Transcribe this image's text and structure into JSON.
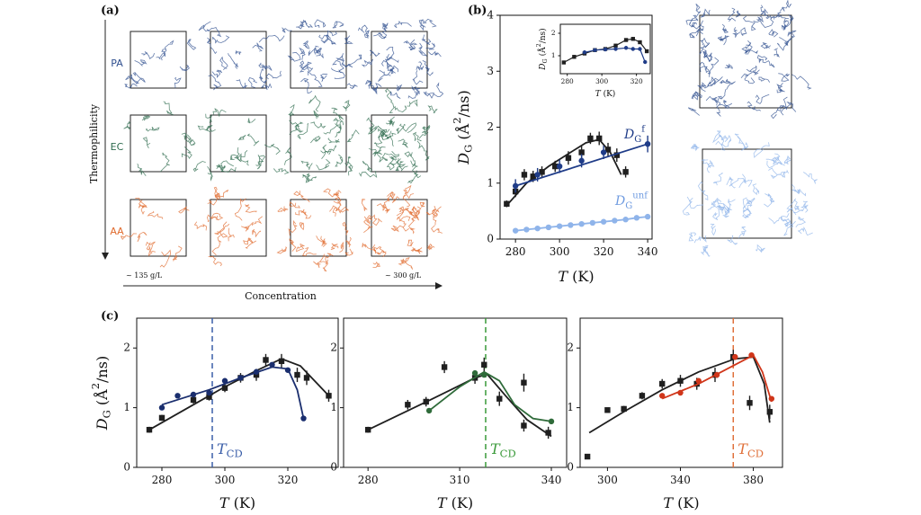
{
  "panel_labels": [
    "(a)",
    "(b)",
    "(c)"
  ],
  "panel_a": {
    "rows": [
      {
        "label": "PA",
        "color": "#2f4f8f"
      },
      {
        "label": "EC",
        "color": "#2e6b4e"
      },
      {
        "label": "AA",
        "color": "#e06a2c"
      }
    ],
    "y_axis_label": "Thermophilicity",
    "x_axis_label": "Concentration",
    "x_start_label": "~ 135 g/L",
    "x_end_label": "~ 300 g/L"
  },
  "chart_data": [
    {
      "type": "scatter",
      "x_label": [
        {
          "text": "T",
          "italic": true
        },
        {
          "text": " (K)"
        }
      ],
      "y_label": [
        {
          "text": "D",
          "italic": true
        },
        {
          "text": "G",
          "sub": true
        },
        {
          "text": " (Å"
        },
        {
          "text": "2",
          "sup": true
        },
        {
          "text": "/ns)"
        }
      ],
      "xlim": [
        273,
        342
      ],
      "ylim": [
        0,
        4
      ],
      "xticks": [
        280,
        300,
        320,
        340
      ],
      "yticks": [
        0,
        1,
        2,
        3,
        4
      ],
      "series": [
        {
          "color": "#1f1f1f",
          "marker": "square",
          "line": false,
          "x": [
            276,
            280,
            284,
            288,
            292,
            298,
            304,
            310,
            314,
            318,
            322,
            326,
            330
          ],
          "values": [
            0.63,
            0.85,
            1.15,
            1.12,
            1.2,
            1.3,
            1.45,
            1.55,
            1.8,
            1.8,
            1.6,
            1.5,
            1.2
          ],
          "errors": [
            0.06,
            0.1,
            0.1,
            0.1,
            0.1,
            0.1,
            0.12,
            0.12,
            0.1,
            0.12,
            0.12,
            0.12,
            0.1
          ]
        },
        {
          "color": "#1f1f1f",
          "marker": "none",
          "line": true,
          "x": [
            276,
            285,
            295,
            305,
            312,
            318,
            323,
            328
          ],
          "values": [
            0.6,
            1.0,
            1.3,
            1.55,
            1.72,
            1.78,
            1.55,
            1.15
          ]
        },
        {
          "color": "#1f3c88",
          "marker": "circle",
          "line": false,
          "x": [
            280,
            290,
            300,
            310,
            320,
            340
          ],
          "values": [
            0.95,
            1.15,
            1.3,
            1.4,
            1.55,
            1.7
          ],
          "errors": [
            0.12,
            0.12,
            0.12,
            0.12,
            0.12,
            0.15
          ]
        },
        {
          "color": "#1f3c88",
          "marker": "none",
          "line": true,
          "x": [
            280,
            340
          ],
          "values": [
            0.95,
            1.7
          ]
        },
        {
          "color": "#8fb4ea",
          "marker": "circle",
          "line": true,
          "x": [
            280,
            285,
            290,
            295,
            300,
            305,
            310,
            315,
            320,
            325,
            330,
            335,
            340
          ],
          "values": [
            0.15,
            0.17,
            0.19,
            0.21,
            0.23,
            0.25,
            0.27,
            0.29,
            0.31,
            0.33,
            0.35,
            0.38,
            0.4
          ]
        }
      ],
      "annotations": [
        {
          "parts": [
            {
              "text": "D",
              "italic": true
            },
            {
              "text": "G",
              "sub": true
            },
            {
              "text": "f",
              "sup": true
            }
          ],
          "color": "#1f3c88"
        },
        {
          "parts": [
            {
              "text": "D",
              "italic": true
            },
            {
              "text": "G",
              "sub": true
            },
            {
              "text": "unf",
              "sup": true
            }
          ],
          "color": "#6f9be0"
        }
      ]
    },
    {
      "type": "scatter",
      "x_label": [
        {
          "text": "T",
          "italic": true
        },
        {
          "text": " (K)"
        }
      ],
      "y_label": [
        {
          "text": "D",
          "italic": true
        },
        {
          "text": "G",
          "sub": true
        },
        {
          "text": " (Å"
        },
        {
          "text": "2",
          "sup": true
        },
        {
          "text": "/ns)"
        }
      ],
      "xlim": [
        276,
        328
      ],
      "ylim": [
        0.2,
        2.4
      ],
      "xticks": [
        280,
        300,
        320
      ],
      "yticks": [
        1,
        2
      ],
      "series": [
        {
          "color": "#1f1f1f",
          "marker": "square",
          "line": true,
          "x": [
            278,
            284,
            290,
            296,
            302,
            308,
            314,
            318,
            322,
            326
          ],
          "values": [
            0.7,
            0.95,
            1.1,
            1.25,
            1.3,
            1.45,
            1.7,
            1.75,
            1.6,
            1.2
          ]
        },
        {
          "color": "#1f3c88",
          "marker": "circle",
          "line": true,
          "x": [
            290,
            296,
            302,
            308,
            314,
            318,
            322,
            325
          ],
          "values": [
            1.15,
            1.25,
            1.28,
            1.3,
            1.35,
            1.3,
            1.3,
            0.72
          ]
        }
      ]
    },
    {
      "type": "scatter",
      "x_label": [
        {
          "text": "T",
          "italic": true
        },
        {
          "text": " (K)"
        }
      ],
      "y_label": [
        {
          "text": "D",
          "italic": true
        },
        {
          "text": "G",
          "sub": true
        },
        {
          "text": " (Å"
        },
        {
          "text": "2",
          "sup": true
        },
        {
          "text": "/ns)"
        }
      ],
      "xlim": [
        272,
        336
      ],
      "ylim": [
        0,
        2.5
      ],
      "xticks": [
        280,
        300,
        320
      ],
      "yticks": [
        0,
        1,
        2
      ],
      "vline": 296,
      "vline_color": "#3a5ea8",
      "vline_label": [
        {
          "text": "T",
          "italic": true
        },
        {
          "text": "CD",
          "sub": true
        }
      ],
      "series": [
        {
          "color": "#1f1f1f",
          "marker": "square",
          "line": false,
          "x": [
            276,
            280,
            290,
            295,
            300,
            305,
            310,
            313,
            318,
            323,
            326,
            333
          ],
          "values": [
            0.63,
            0.83,
            1.13,
            1.18,
            1.33,
            1.5,
            1.55,
            1.8,
            1.78,
            1.55,
            1.5,
            1.2
          ],
          "errors": [
            0.05,
            0.05,
            0.06,
            0.06,
            0.07,
            0.08,
            0.1,
            0.1,
            0.12,
            0.12,
            0.12,
            0.1
          ]
        },
        {
          "color": "#1f1f1f",
          "marker": "none",
          "line": true,
          "x": [
            276,
            290,
            300,
            310,
            318,
            324,
            333
          ],
          "values": [
            0.63,
            1.05,
            1.35,
            1.62,
            1.82,
            1.7,
            1.2
          ]
        },
        {
          "color": "#1a2e6e",
          "marker": "circle",
          "line": false,
          "x": [
            280,
            285,
            290,
            295,
            300,
            305,
            310,
            315,
            320,
            325
          ],
          "values": [
            1.0,
            1.2,
            1.22,
            1.25,
            1.45,
            1.5,
            1.6,
            1.72,
            1.63,
            0.82
          ]
        },
        {
          "color": "#1a2e6e",
          "marker": "none",
          "line": true,
          "x": [
            280,
            295,
            305,
            315,
            320,
            323,
            325
          ],
          "values": [
            1.05,
            1.3,
            1.5,
            1.68,
            1.65,
            1.3,
            0.82
          ]
        }
      ]
    },
    {
      "type": "scatter",
      "x_label": [
        {
          "text": "T",
          "italic": true
        },
        {
          "text": " (K)"
        }
      ],
      "xlim": [
        272,
        345
      ],
      "ylim": [
        0,
        2.5
      ],
      "xticks": [
        280,
        310,
        340
      ],
      "yticks": [
        0,
        1,
        2
      ],
      "vline": 318.5,
      "vline_color": "#3a9a3a",
      "vline_label": [
        {
          "text": "T",
          "italic": true
        },
        {
          "text": "CD",
          "sub": true
        }
      ],
      "series": [
        {
          "color": "#1f1f1f",
          "marker": "square",
          "line": false,
          "x": [
            280,
            293,
            299,
            305,
            315,
            318,
            323,
            331,
            331,
            339
          ],
          "values": [
            0.63,
            1.05,
            1.1,
            1.68,
            1.5,
            1.72,
            1.15,
            1.42,
            0.7,
            0.58
          ],
          "errors": [
            0.05,
            0.08,
            0.08,
            0.1,
            0.1,
            0.12,
            0.12,
            0.15,
            0.1,
            0.1
          ]
        },
        {
          "color": "#1f1f1f",
          "marker": "none",
          "line": true,
          "x": [
            280,
            300,
            315,
            319,
            325,
            332,
            340
          ],
          "values": [
            0.63,
            1.12,
            1.5,
            1.56,
            1.2,
            0.8,
            0.52
          ]
        },
        {
          "color": "#2f6b3a",
          "marker": "circle",
          "line": false,
          "x": [
            300,
            315,
            318,
            340
          ],
          "values": [
            0.95,
            1.58,
            1.55,
            0.77
          ]
        },
        {
          "color": "#2f6b3a",
          "marker": "none",
          "line": true,
          "x": [
            300,
            310,
            318,
            323,
            328,
            334,
            340
          ],
          "values": [
            0.95,
            1.35,
            1.6,
            1.45,
            1.05,
            0.82,
            0.77
          ]
        }
      ]
    },
    {
      "type": "scatter",
      "x_label": [
        {
          "text": "T",
          "italic": true
        },
        {
          "text": " (K)"
        }
      ],
      "xlim": [
        285,
        396
      ],
      "ylim": [
        0,
        2.5
      ],
      "xticks": [
        300,
        340,
        380
      ],
      "yticks": [
        0,
        1,
        2
      ],
      "vline": 369,
      "vline_color": "#e0703a",
      "vline_label": [
        {
          "text": "T",
          "italic": true
        },
        {
          "text": "CD",
          "sub": true
        }
      ],
      "series": [
        {
          "color": "#1f1f1f",
          "marker": "square",
          "line": false,
          "x": [
            289,
            300,
            309,
            319,
            330,
            340,
            349,
            359,
            369,
            378,
            389
          ],
          "values": [
            0.18,
            0.96,
            0.98,
            1.2,
            1.4,
            1.45,
            1.4,
            1.55,
            1.85,
            1.08,
            0.93
          ],
          "errors": [
            0.03,
            0.04,
            0.05,
            0.06,
            0.08,
            0.1,
            0.1,
            0.12,
            0.12,
            0.12,
            0.12
          ]
        },
        {
          "color": "#1f1f1f",
          "marker": "none",
          "line": true,
          "x": [
            290,
            310,
            330,
            350,
            370,
            380,
            386,
            389
          ],
          "values": [
            0.58,
            0.95,
            1.3,
            1.6,
            1.82,
            1.85,
            1.4,
            0.75
          ]
        },
        {
          "color": "#d0361a",
          "marker": "circle",
          "line": false,
          "x": [
            330,
            340,
            350,
            360,
            370,
            379,
            390
          ],
          "values": [
            1.2,
            1.25,
            1.45,
            1.55,
            1.85,
            1.88,
            1.15
          ]
        },
        {
          "color": "#d0361a",
          "marker": "none",
          "line": true,
          "x": [
            330,
            350,
            370,
            380,
            385,
            390
          ],
          "values": [
            1.15,
            1.4,
            1.72,
            1.88,
            1.6,
            1.1
          ]
        }
      ]
    }
  ]
}
